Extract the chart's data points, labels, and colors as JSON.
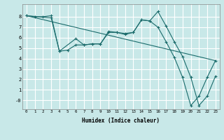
{
  "xlabel": "Humidex (Indice chaleur)",
  "background_color": "#c8e8e8",
  "grid_color": "#ffffff",
  "line_color": "#1a6b6b",
  "xlim": [
    -0.5,
    23.5
  ],
  "ylim": [
    -0.85,
    9.2
  ],
  "xticks": [
    0,
    1,
    2,
    3,
    4,
    5,
    6,
    7,
    8,
    9,
    10,
    11,
    12,
    13,
    14,
    15,
    16,
    17,
    18,
    19,
    20,
    21,
    22,
    23
  ],
  "yticks": [
    0,
    1,
    2,
    3,
    4,
    5,
    6,
    7,
    8
  ],
  "ytick_labels": [
    "-0",
    "1",
    "2",
    "3",
    "4",
    "5",
    "6",
    "7",
    "8"
  ],
  "line1_x": [
    0,
    1,
    2,
    3,
    4,
    6,
    7,
    8,
    9,
    10,
    11,
    12,
    13,
    14,
    15,
    16,
    17,
    18,
    19,
    20,
    21,
    22,
    23
  ],
  "line1_y": [
    8.1,
    8.0,
    8.0,
    8.1,
    4.7,
    5.9,
    5.3,
    5.4,
    5.4,
    6.6,
    6.5,
    6.4,
    6.5,
    7.7,
    7.6,
    8.5,
    7.1,
    5.6,
    4.2,
    2.2,
    -0.5,
    0.4,
    2.3
  ],
  "line2_x": [
    0,
    3,
    4,
    5,
    6,
    7,
    8,
    9,
    10,
    11,
    12,
    13,
    14,
    15,
    16,
    17,
    18,
    19,
    20,
    21,
    22,
    23
  ],
  "line2_y": [
    8.1,
    7.9,
    4.7,
    4.8,
    5.3,
    5.3,
    5.4,
    5.4,
    6.5,
    6.5,
    6.3,
    6.5,
    7.7,
    7.6,
    7.0,
    5.6,
    4.1,
    2.2,
    -0.5,
    0.4,
    2.2,
    3.8
  ],
  "line3_x": [
    0,
    23
  ],
  "line3_y": [
    8.1,
    3.8
  ]
}
